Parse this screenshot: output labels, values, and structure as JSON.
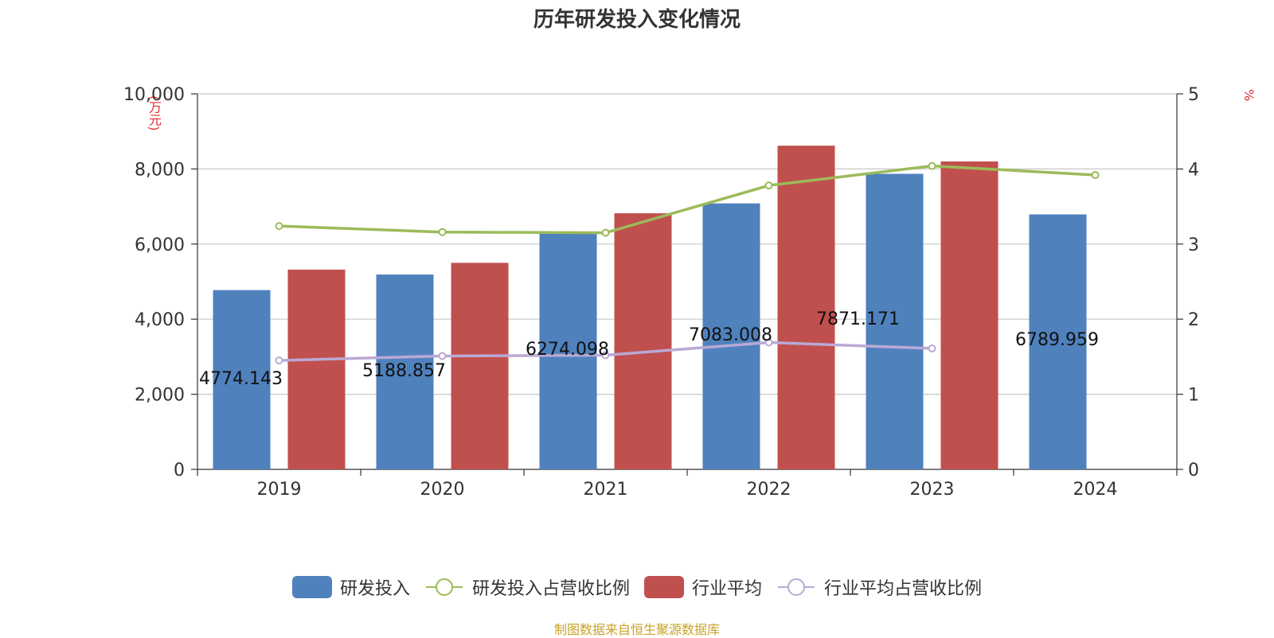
{
  "title": "历年研发投入变化情况",
  "source": "制图数据来自恒生聚源数据库",
  "units": {
    "left": "(万元)",
    "right": "%"
  },
  "colors": {
    "rd_bar": "#4f81bd",
    "industry_bar": "#c0504d",
    "rd_ratio_line": "#9bbb59",
    "industry_ratio_line": "#b9a9d6",
    "grid": "#c8c8c8",
    "axis": "#333333"
  },
  "legend": [
    {
      "label": "研发投入",
      "type": "bar",
      "color": "#4f81bd"
    },
    {
      "label": "研发投入占营收比例",
      "type": "line",
      "color": "#9bbb59"
    },
    {
      "label": "行业平均",
      "type": "bar",
      "color": "#c0504d"
    },
    {
      "label": "行业平均占营收比例",
      "type": "line",
      "color": "#b9a9d6"
    }
  ],
  "chart_data": {
    "type": "bar",
    "categories": [
      "2019",
      "2020",
      "2021",
      "2022",
      "2023",
      "2024"
    ],
    "y_left": {
      "min": 0,
      "max": 10000,
      "ticks": [
        0,
        2000,
        4000,
        6000,
        8000,
        10000
      ],
      "tick_labels": [
        "0",
        "2,000",
        "4,000",
        "6,000",
        "8,000",
        "10,000"
      ]
    },
    "y_right": {
      "min": 0,
      "max": 5,
      "ticks": [
        0,
        1,
        2,
        3,
        4,
        5
      ],
      "tick_labels": [
        "0",
        "1",
        "2",
        "3",
        "4",
        "5"
      ]
    },
    "grid": true,
    "legend_position": "bottom",
    "series": [
      {
        "name": "研发投入",
        "kind": "bar",
        "axis": "left",
        "values": [
          4774.143,
          5188.857,
          6274.098,
          7083.008,
          7871.171,
          6789.959
        ],
        "labels": [
          "4774.143",
          "5188.857",
          "6274.098",
          "7083.008",
          "7871.171",
          "6789.959"
        ]
      },
      {
        "name": "行业平均",
        "kind": "bar",
        "axis": "left",
        "values": [
          5320,
          5500,
          6820,
          8620,
          8200,
          null
        ]
      },
      {
        "name": "研发投入占营收比例",
        "kind": "line",
        "axis": "right",
        "values": [
          3.24,
          3.16,
          3.15,
          3.78,
          4.04,
          3.92
        ]
      },
      {
        "name": "行业平均占营收比例",
        "kind": "line",
        "axis": "right",
        "values": [
          1.45,
          1.51,
          1.52,
          1.69,
          1.61,
          null
        ]
      }
    ]
  }
}
